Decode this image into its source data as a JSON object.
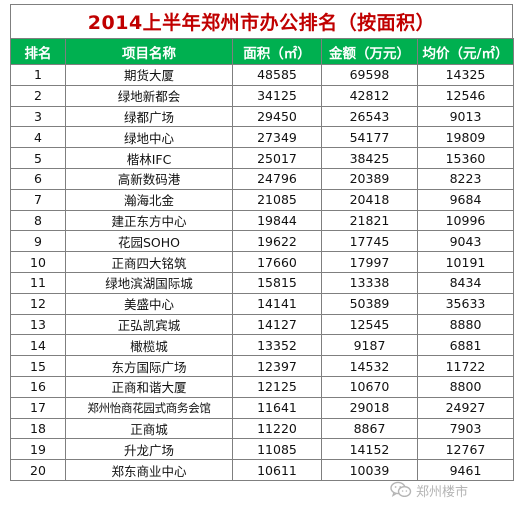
{
  "title": "2014上半年郑州市办公排名（按面积）",
  "headers": {
    "rank": "排名",
    "name": "项目名称",
    "area": "面积（㎡）",
    "amount": "金额（万元）",
    "price": "均价（元/㎡）"
  },
  "rows": [
    {
      "rank": "1",
      "name": "期货大厦",
      "area": "48585",
      "amount": "69598",
      "price": "14325"
    },
    {
      "rank": "2",
      "name": "绿地新都会",
      "area": "34125",
      "amount": "42812",
      "price": "12546"
    },
    {
      "rank": "3",
      "name": "绿都广场",
      "area": "29450",
      "amount": "26543",
      "price": "9013"
    },
    {
      "rank": "4",
      "name": "绿地中心",
      "area": "27349",
      "amount": "54177",
      "price": "19809"
    },
    {
      "rank": "5",
      "name": "楷林IFC",
      "area": "25017",
      "amount": "38425",
      "price": "15360"
    },
    {
      "rank": "6",
      "name": "高新数码港",
      "area": "24796",
      "amount": "20389",
      "price": "8223"
    },
    {
      "rank": "7",
      "name": "瀚海北金",
      "area": "21085",
      "amount": "20418",
      "price": "9684"
    },
    {
      "rank": "8",
      "name": "建正东方中心",
      "area": "19844",
      "amount": "21821",
      "price": "10996"
    },
    {
      "rank": "9",
      "name": "花园SOHO",
      "area": "19622",
      "amount": "17745",
      "price": "9043"
    },
    {
      "rank": "10",
      "name": "正商四大铭筑",
      "area": "17660",
      "amount": "17997",
      "price": "10191"
    },
    {
      "rank": "11",
      "name": "绿地滨湖国际城",
      "area": "15815",
      "amount": "13338",
      "price": "8434"
    },
    {
      "rank": "12",
      "name": "美盛中心",
      "area": "14141",
      "amount": "50389",
      "price": "35633"
    },
    {
      "rank": "13",
      "name": "正弘凯宾城",
      "area": "14127",
      "amount": "12545",
      "price": "8880"
    },
    {
      "rank": "14",
      "name": "橄榄城",
      "area": "13352",
      "amount": "9187",
      "price": "6881"
    },
    {
      "rank": "15",
      "name": "东方国际广场",
      "area": "12397",
      "amount": "14532",
      "price": "11722"
    },
    {
      "rank": "16",
      "name": "正商和谐大厦",
      "area": "12125",
      "amount": "10670",
      "price": "8800"
    },
    {
      "rank": "17",
      "name": "郑州怡商花园式商务会馆",
      "area": "11641",
      "amount": "29018",
      "price": "24927"
    },
    {
      "rank": "18",
      "name": "正商城",
      "area": "11220",
      "amount": "8867",
      "price": "7903"
    },
    {
      "rank": "19",
      "name": "升龙广场",
      "area": "11085",
      "amount": "14152",
      "price": "12767"
    },
    {
      "rank": "20",
      "name": "郑东商业中心",
      "area": "10611",
      "amount": "10039",
      "price": "9461"
    }
  ],
  "watermark": {
    "text": "郑州楼市",
    "icon": "wechat-icon"
  },
  "colors": {
    "title": "#c00000",
    "header_bg": "#00b050",
    "header_text": "#ffffff",
    "border": "#7f7f7f"
  }
}
